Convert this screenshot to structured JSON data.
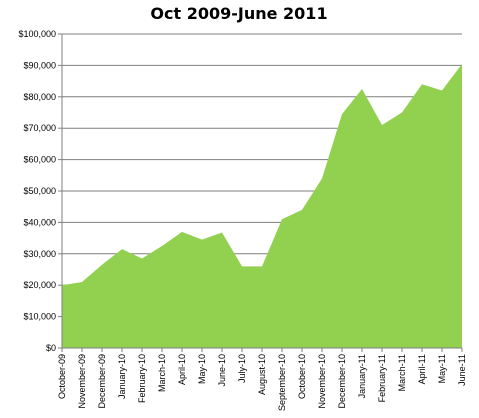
{
  "chart_data": {
    "type": "area",
    "title": "Oct 2009-June 2011",
    "xlabel": "",
    "ylabel": "",
    "ylim": [
      0,
      100000
    ],
    "ytick_labels": [
      "$0",
      "$10,000",
      "$20,000",
      "$30,000",
      "$40,000",
      "$50,000",
      "$60,000",
      "$70,000",
      "$80,000",
      "$90,000",
      "$100,000"
    ],
    "ytick_values": [
      0,
      10000,
      20000,
      30000,
      40000,
      50000,
      60000,
      70000,
      80000,
      90000,
      100000
    ],
    "categories": [
      "October-09",
      "November-09",
      "December-09",
      "January-10",
      "February-10",
      "March-10",
      "April-10",
      "May-10",
      "June-10",
      "July-10",
      "August-10",
      "September-10",
      "October-10",
      "November-10",
      "December-10",
      "January-11",
      "February-11",
      "March-11",
      "April-11",
      "May-11",
      "June-11"
    ],
    "values": [
      20000,
      21000,
      26500,
      31500,
      28500,
      32500,
      37000,
      34500,
      36800,
      26000,
      26000,
      41000,
      44000,
      54000,
      74500,
      82500,
      71000,
      75000,
      84000,
      82000,
      90500
    ],
    "grid": true,
    "legend": "none",
    "colors": {
      "area_fill": "#92d050",
      "grid": "#7f7f7f",
      "axis": "#7f7f7f",
      "text": "#000000"
    }
  }
}
